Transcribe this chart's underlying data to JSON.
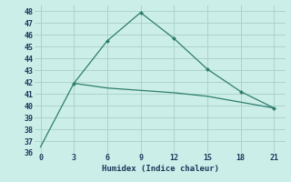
{
  "xlabel": "Humidex (Indice chaleur)",
  "line1_x": [
    0,
    3,
    6,
    9,
    12,
    15,
    18,
    21
  ],
  "line1_y": [
    36.5,
    41.9,
    41.5,
    41.3,
    41.1,
    40.8,
    40.3,
    39.8
  ],
  "line2_x": [
    3,
    6,
    9,
    12,
    15,
    18,
    21
  ],
  "line2_y": [
    41.9,
    45.5,
    47.9,
    45.7,
    43.1,
    41.2,
    39.8
  ],
  "line_color": "#2e7d6e",
  "background_color": "#cceee8",
  "grid_color": "#aad4cc",
  "xlim": [
    -0.5,
    22
  ],
  "ylim": [
    36,
    48.5
  ],
  "xticks": [
    0,
    3,
    6,
    9,
    12,
    15,
    18,
    21
  ],
  "yticks": [
    36,
    37,
    38,
    39,
    40,
    41,
    42,
    43,
    44,
    45,
    46,
    47,
    48
  ]
}
